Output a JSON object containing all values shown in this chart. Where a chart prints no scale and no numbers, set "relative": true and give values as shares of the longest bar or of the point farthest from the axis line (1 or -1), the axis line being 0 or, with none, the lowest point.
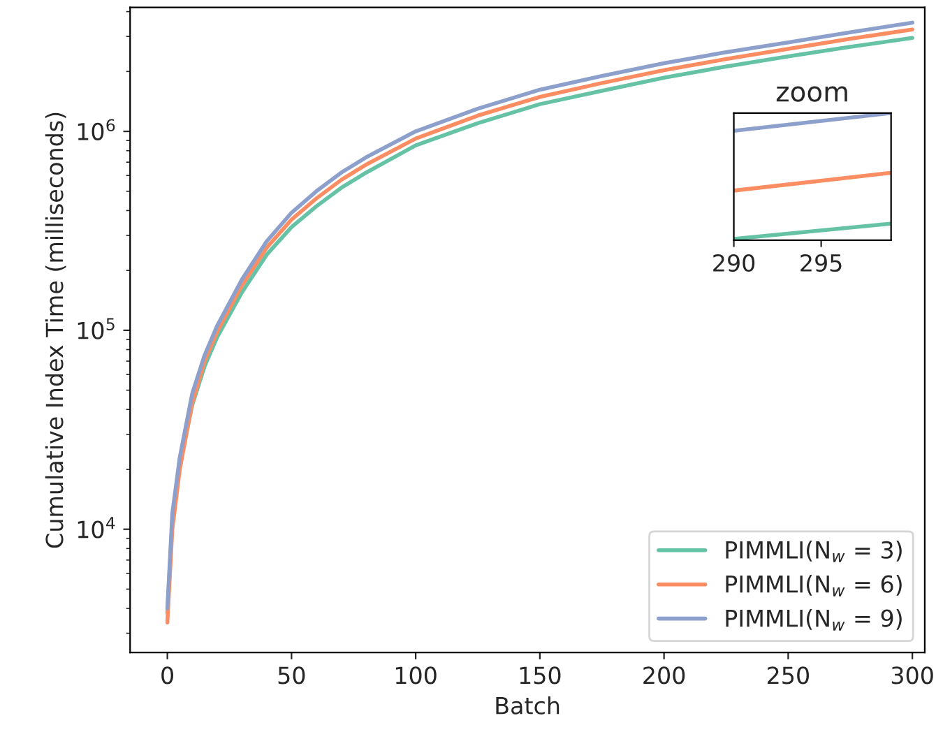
{
  "chart_data": [
    {
      "type": "line",
      "xlabel": "Batch",
      "ylabel": "Cumulative Index Time (milliseconds)",
      "log": "y",
      "xlim": [
        -15,
        305
      ],
      "xticks": [
        0,
        50,
        100,
        150,
        200,
        250,
        300
      ],
      "ylim": [
        2400,
        4200000
      ],
      "yticks": [
        {
          "value": 10000,
          "label": "10$^{4}$"
        },
        {
          "value": 100000,
          "label": "10$^{5}$"
        },
        {
          "value": 1000000,
          "label": "10$^{6}$"
        }
      ],
      "grid": false,
      "legend": "bottom right",
      "x": [
        0,
        2,
        5,
        10,
        15,
        20,
        30,
        40,
        50,
        60,
        70,
        80,
        100,
        125,
        150,
        175,
        200,
        225,
        250,
        275,
        300
      ],
      "series": [
        {
          "name": "PIMMLI(N$_{w}$ = 3)",
          "color": "#66c2a5",
          "values": [
            3800,
            11000,
            21000,
            42000,
            66000,
            92000,
            155000,
            240000,
            330000,
            420000,
            520000,
            620000,
            850000,
            1100000,
            1370000,
            1600000,
            1860000,
            2120000,
            2380000,
            2660000,
            2950000
          ]
        },
        {
          "name": "PIMMLI(N$_{w}$ = 6)",
          "color": "#fc8d62",
          "values": [
            3400,
            10000,
            20000,
            43000,
            70000,
            98000,
            168000,
            260000,
            360000,
            460000,
            570000,
            680000,
            920000,
            1200000,
            1490000,
            1750000,
            2030000,
            2310000,
            2600000,
            2920000,
            3250000
          ]
        },
        {
          "name": "PIMMLI(N$_{w}$ = 9)",
          "color": "#8da0cb",
          "values": [
            4000,
            12000,
            23000,
            48000,
            75000,
            105000,
            180000,
            280000,
            390000,
            500000,
            620000,
            740000,
            1000000,
            1300000,
            1620000,
            1900000,
            2200000,
            2500000,
            2800000,
            3150000,
            3520000
          ]
        }
      ]
    },
    {
      "type": "line",
      "title": "zoom",
      "relative": true,
      "xlim": [
        290,
        299
      ],
      "xticks": [
        290,
        295
      ],
      "tick_labels": "x",
      "x": [
        290,
        299
      ],
      "series": [
        {
          "color": "#66c2a5",
          "values": [
            0.01,
            0.13
          ]
        },
        {
          "color": "#fc8d62",
          "values": [
            0.39,
            0.53
          ]
        },
        {
          "color": "#8da0cb",
          "values": [
            0.86,
            1.0
          ]
        }
      ]
    }
  ]
}
